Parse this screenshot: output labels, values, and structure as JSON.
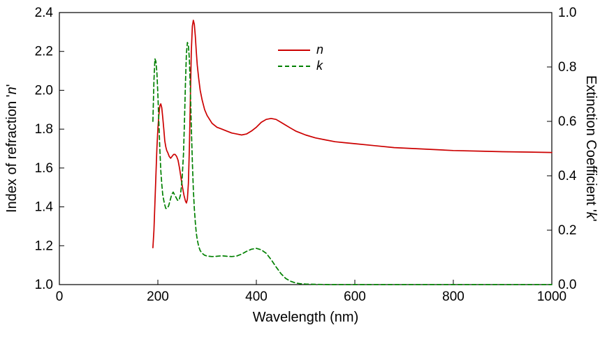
{
  "chart_data": {
    "type": "line",
    "title": "",
    "xlabel": "Wavelength (nm)",
    "ylabel_left": {
      "prefix": "Index of refraction '",
      "var": "n",
      "suffix": "'"
    },
    "ylabel_right": {
      "prefix": "Extinction Coefficient '",
      "var": "k",
      "suffix": "'"
    },
    "x_range": [
      0,
      1000
    ],
    "y_left_range": [
      1.0,
      2.4
    ],
    "y_right_range": [
      0.0,
      1.0
    ],
    "x_ticks": [
      0,
      200,
      400,
      600,
      800,
      1000
    ],
    "y_left_ticks": [
      1.0,
      1.2,
      1.4,
      1.6,
      1.8,
      2.0,
      2.2,
      2.4
    ],
    "y_right_ticks": [
      0.0,
      0.2,
      0.4,
      0.6,
      0.8,
      1.0
    ],
    "grid": false,
    "legend_position": "upper-center-inside",
    "frame_color": "#000000",
    "series": [
      {
        "name": "n",
        "axis": "left",
        "color": "#cc0000",
        "style": "solid",
        "points": [
          [
            190,
            1.19
          ],
          [
            192,
            1.28
          ],
          [
            194,
            1.42
          ],
          [
            196,
            1.56
          ],
          [
            198,
            1.7
          ],
          [
            200,
            1.8
          ],
          [
            202,
            1.87
          ],
          [
            204,
            1.92
          ],
          [
            206,
            1.93
          ],
          [
            208,
            1.91
          ],
          [
            210,
            1.86
          ],
          [
            212,
            1.8
          ],
          [
            214,
            1.74
          ],
          [
            216,
            1.71
          ],
          [
            218,
            1.69
          ],
          [
            220,
            1.68
          ],
          [
            223,
            1.66
          ],
          [
            226,
            1.65
          ],
          [
            229,
            1.66
          ],
          [
            232,
            1.67
          ],
          [
            235,
            1.67
          ],
          [
            238,
            1.66
          ],
          [
            241,
            1.64
          ],
          [
            244,
            1.6
          ],
          [
            247,
            1.55
          ],
          [
            250,
            1.5
          ],
          [
            253,
            1.46
          ],
          [
            256,
            1.43
          ],
          [
            258,
            1.42
          ],
          [
            260,
            1.44
          ],
          [
            262,
            1.52
          ],
          [
            264,
            1.7
          ],
          [
            266,
            1.95
          ],
          [
            268,
            2.2
          ],
          [
            270,
            2.33
          ],
          [
            272,
            2.36
          ],
          [
            274,
            2.34
          ],
          [
            276,
            2.28
          ],
          [
            278,
            2.2
          ],
          [
            280,
            2.13
          ],
          [
            283,
            2.06
          ],
          [
            286,
            2.0
          ],
          [
            290,
            1.95
          ],
          [
            295,
            1.9
          ],
          [
            300,
            1.87
          ],
          [
            310,
            1.83
          ],
          [
            320,
            1.81
          ],
          [
            330,
            1.8
          ],
          [
            340,
            1.79
          ],
          [
            350,
            1.78
          ],
          [
            360,
            1.775
          ],
          [
            370,
            1.77
          ],
          [
            380,
            1.775
          ],
          [
            390,
            1.79
          ],
          [
            400,
            1.81
          ],
          [
            410,
            1.835
          ],
          [
            420,
            1.85
          ],
          [
            430,
            1.855
          ],
          [
            440,
            1.85
          ],
          [
            450,
            1.835
          ],
          [
            460,
            1.82
          ],
          [
            470,
            1.805
          ],
          [
            480,
            1.79
          ],
          [
            490,
            1.78
          ],
          [
            500,
            1.77
          ],
          [
            520,
            1.755
          ],
          [
            540,
            1.745
          ],
          [
            560,
            1.735
          ],
          [
            580,
            1.73
          ],
          [
            600,
            1.725
          ],
          [
            640,
            1.715
          ],
          [
            680,
            1.705
          ],
          [
            720,
            1.7
          ],
          [
            760,
            1.695
          ],
          [
            800,
            1.69
          ],
          [
            850,
            1.687
          ],
          [
            900,
            1.684
          ],
          [
            950,
            1.682
          ],
          [
            1000,
            1.68
          ]
        ]
      },
      {
        "name": "k",
        "axis": "right",
        "color": "#008000",
        "style": "dashed",
        "points": [
          [
            190,
            0.6
          ],
          [
            192,
            0.75
          ],
          [
            194,
            0.83
          ],
          [
            196,
            0.82
          ],
          [
            198,
            0.78
          ],
          [
            200,
            0.7
          ],
          [
            202,
            0.6
          ],
          [
            204,
            0.5
          ],
          [
            206,
            0.42
          ],
          [
            208,
            0.37
          ],
          [
            210,
            0.33
          ],
          [
            213,
            0.3
          ],
          [
            216,
            0.28
          ],
          [
            219,
            0.28
          ],
          [
            222,
            0.29
          ],
          [
            225,
            0.31
          ],
          [
            228,
            0.33
          ],
          [
            231,
            0.34
          ],
          [
            234,
            0.33
          ],
          [
            237,
            0.32
          ],
          [
            240,
            0.31
          ],
          [
            243,
            0.31
          ],
          [
            246,
            0.33
          ],
          [
            249,
            0.38
          ],
          [
            252,
            0.48
          ],
          [
            254,
            0.6
          ],
          [
            256,
            0.74
          ],
          [
            258,
            0.85
          ],
          [
            260,
            0.89
          ],
          [
            262,
            0.88
          ],
          [
            264,
            0.83
          ],
          [
            266,
            0.72
          ],
          [
            268,
            0.58
          ],
          [
            270,
            0.45
          ],
          [
            272,
            0.35
          ],
          [
            274,
            0.28
          ],
          [
            276,
            0.23
          ],
          [
            278,
            0.19
          ],
          [
            280,
            0.165
          ],
          [
            283,
            0.14
          ],
          [
            286,
            0.125
          ],
          [
            290,
            0.115
          ],
          [
            295,
            0.108
          ],
          [
            300,
            0.105
          ],
          [
            310,
            0.103
          ],
          [
            320,
            0.104
          ],
          [
            330,
            0.106
          ],
          [
            340,
            0.104
          ],
          [
            350,
            0.103
          ],
          [
            360,
            0.105
          ],
          [
            370,
            0.112
          ],
          [
            380,
            0.122
          ],
          [
            390,
            0.13
          ],
          [
            400,
            0.133
          ],
          [
            410,
            0.128
          ],
          [
            420,
            0.115
          ],
          [
            430,
            0.092
          ],
          [
            440,
            0.065
          ],
          [
            450,
            0.04
          ],
          [
            460,
            0.022
          ],
          [
            470,
            0.012
          ],
          [
            480,
            0.006
          ],
          [
            490,
            0.003
          ],
          [
            500,
            0.002
          ],
          [
            520,
            0.001
          ],
          [
            550,
            0.0
          ],
          [
            600,
            0.0
          ],
          [
            650,
            0.0
          ],
          [
            700,
            0.0
          ],
          [
            750,
            0.0
          ],
          [
            800,
            0.0
          ],
          [
            850,
            0.0
          ],
          [
            900,
            0.0
          ],
          [
            950,
            0.0
          ],
          [
            1000,
            0.0
          ]
        ]
      }
    ]
  }
}
